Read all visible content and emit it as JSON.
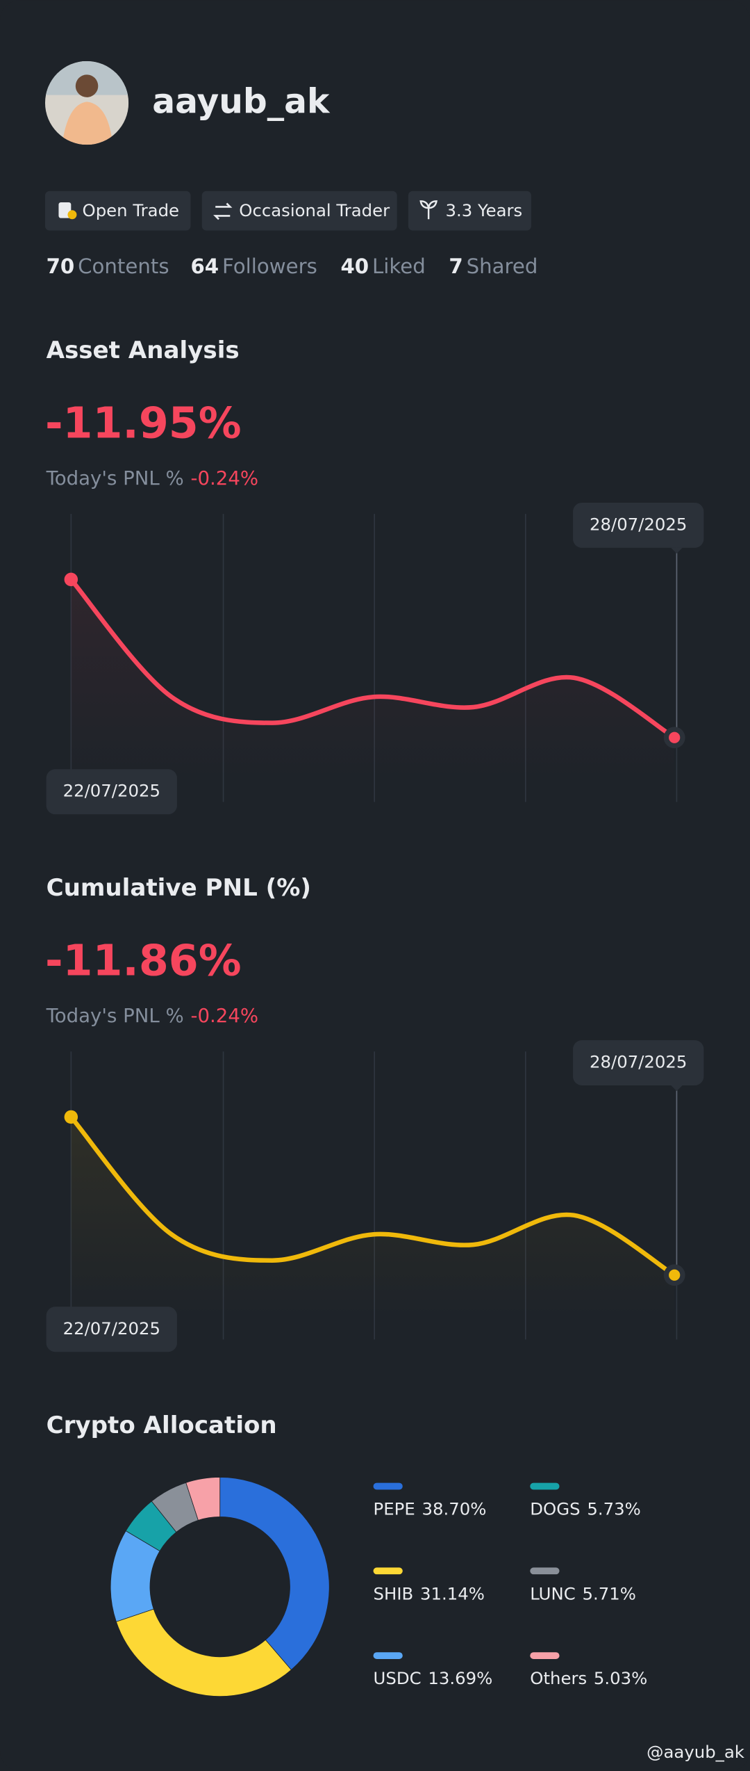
{
  "profile": {
    "username": "aayub_ak"
  },
  "tags": [
    "Open Trade",
    "Occasional Trader",
    "3.3 Years"
  ],
  "stats": [
    {
      "value": 70,
      "label": "Contents"
    },
    {
      "value": 64,
      "label": "Followers"
    },
    {
      "value": 40,
      "label": "Liked"
    },
    {
      "value": 7,
      "label": "Shared"
    }
  ],
  "chart_data": [
    {
      "type": "line",
      "title": "Asset Analysis",
      "annotations": {
        "headline": "-11.95%",
        "today_label": "Today's PNL %",
        "today_value": "-0.24%"
      },
      "categories": [
        "22/07/2025",
        null,
        null,
        null,
        null,
        null,
        "28/07/2025"
      ],
      "values": [
        0,
        -8.88,
        -10.84,
        -8.88,
        -9.65,
        -7.43,
        -11.95
      ],
      "color": "#f6465d"
    },
    {
      "type": "line",
      "title": "Cumulative PNL (%)",
      "annotations": {
        "headline": "-11.86%",
        "today_label": "Today's PNL %",
        "today_value": "-0.24%"
      },
      "categories": [
        "22/07/2025",
        null,
        null,
        null,
        null,
        null,
        "28/07/2025"
      ],
      "values": [
        0,
        -8.81,
        -10.76,
        -8.81,
        -9.58,
        -7.37,
        -11.86
      ],
      "color": "#f0b90b"
    },
    {
      "type": "pie",
      "title": "Crypto Allocation",
      "categories": [
        "PEPE",
        "SHIB",
        "USDC",
        "DOGS",
        "LUNC",
        "Others"
      ],
      "values": [
        38.7,
        31.14,
        13.69,
        5.73,
        5.71,
        5.03
      ],
      "value_labels": [
        "38.70%",
        "31.14%",
        "13.69%",
        "5.73%",
        "5.71%",
        "5.03%"
      ],
      "colors": [
        "#2a6fdb",
        "#fdd835",
        "#5aa7f5",
        "#17a2a8",
        "#8a9099",
        "#f7a1a8"
      ]
    }
  ],
  "watermark": "@aayub_ak"
}
